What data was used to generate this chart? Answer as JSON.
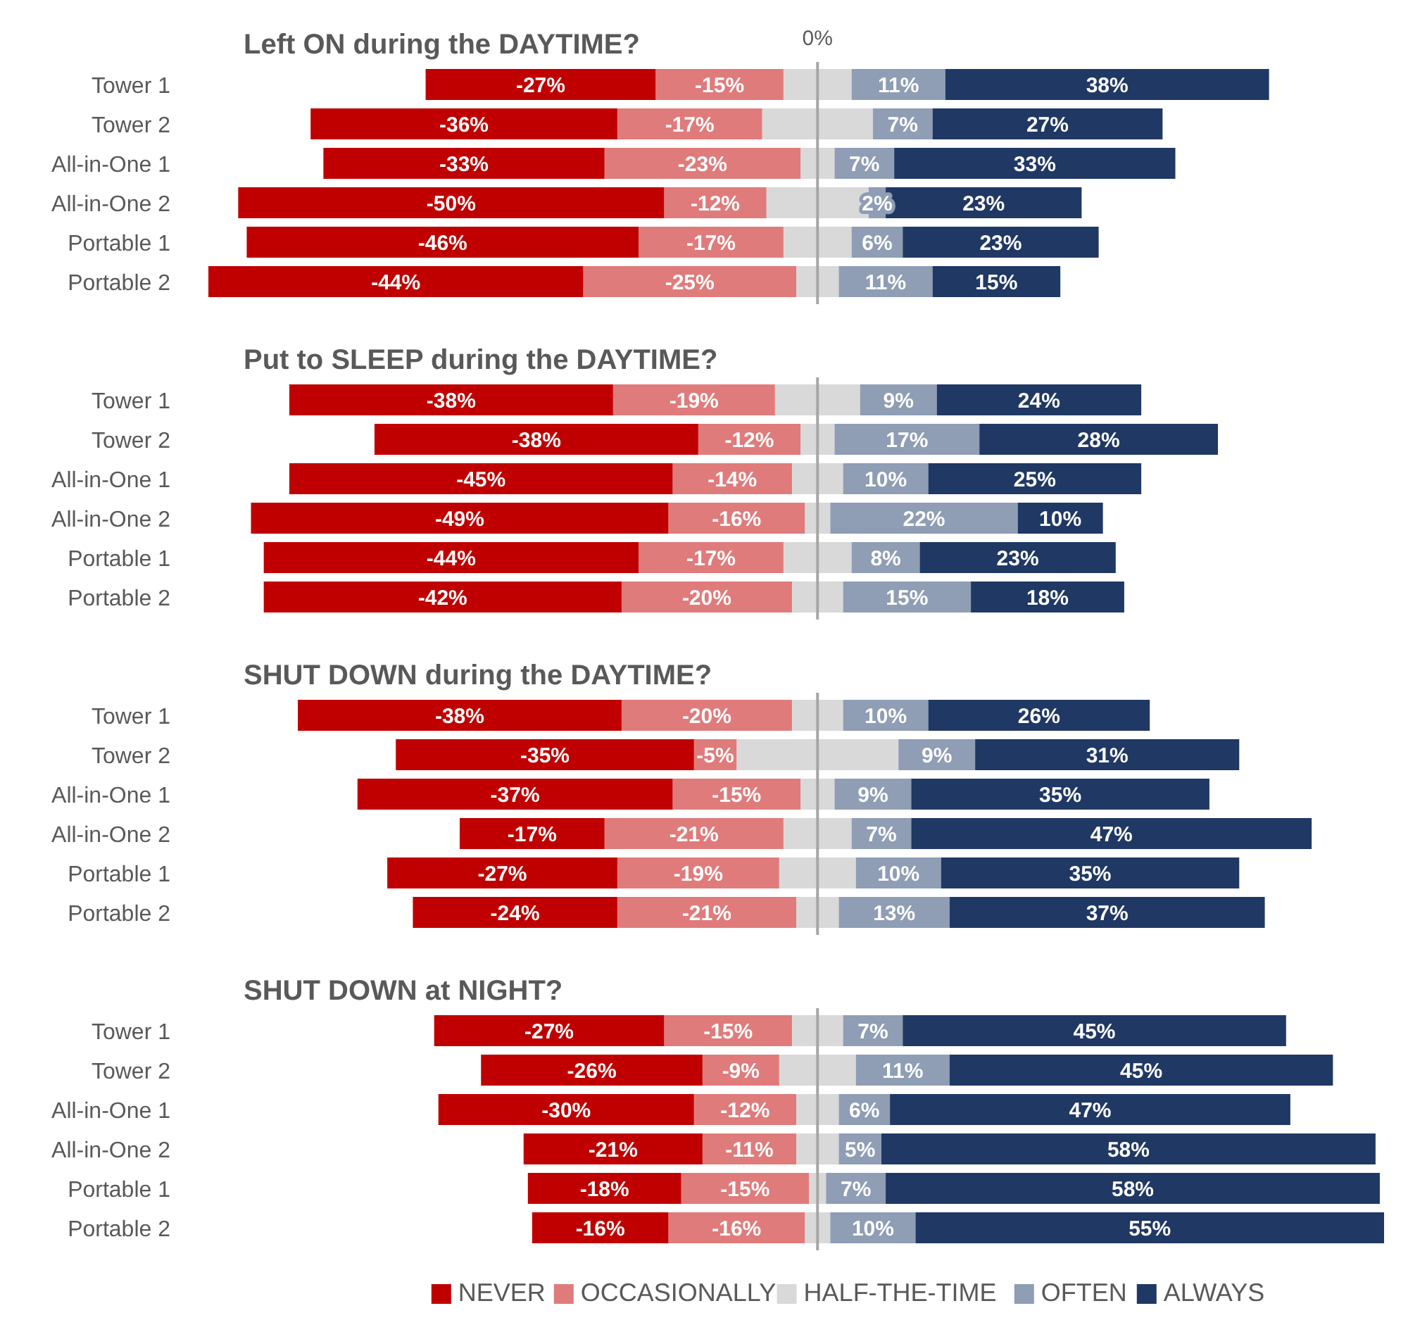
{
  "chart_data": [
    {
      "type": "bar",
      "orientation": "horizontal",
      "stacked": true,
      "title": "Left ON during the DAYTIME?",
      "categories": [
        "Tower 1",
        "Tower 2",
        "All-in-One 1",
        "All-in-One 2",
        "Portable 1",
        "Portable 2"
      ],
      "annotations": [
        "0%"
      ],
      "ref_lines": [
        {
          "axis": "x",
          "value": 0,
          "color": "#a6a6a6"
        }
      ],
      "series": [
        {
          "color": "#d9d9d9",
          "values": [
            -4,
            -6.5,
            -2,
            -6,
            -4,
            -2.5
          ]
        },
        {
          "color": "#e07b7b",
          "values": [
            -15,
            -17,
            -23,
            -12,
            -17,
            -25
          ],
          "value_labels": [
            "-15%",
            "-17%",
            "-23%",
            "-12%",
            "-17%",
            "-25%"
          ]
        },
        {
          "color": "#c00000",
          "values": [
            -27,
            -36,
            -33,
            -50,
            -46,
            -44
          ],
          "value_labels": [
            "-27%",
            "-36%",
            "-33%",
            "-50%",
            "-46%",
            "-44%"
          ]
        },
        {
          "color": "#d9d9d9",
          "values": [
            4,
            6.5,
            2,
            6,
            4,
            2.5
          ]
        },
        {
          "color": "#8f9db5",
          "values": [
            11,
            7,
            7,
            2,
            6,
            11
          ],
          "value_labels": [
            "11%",
            "7%",
            "7%",
            "2%",
            "6%",
            "11%"
          ]
        },
        {
          "color": "#203864",
          "values": [
            38,
            27,
            33,
            23,
            23,
            15
          ],
          "value_labels": [
            "38%",
            "27%",
            "33%",
            "23%",
            "23%",
            "15%"
          ]
        }
      ]
    },
    {
      "type": "bar",
      "orientation": "horizontal",
      "stacked": true,
      "title": "Put to SLEEP during the DAYTIME?",
      "categories": [
        "Tower 1",
        "Tower 2",
        "All-in-One 1",
        "All-in-One 2",
        "Portable 1",
        "Portable 2"
      ],
      "ref_lines": [
        {
          "axis": "x",
          "value": 0,
          "color": "#a6a6a6"
        }
      ],
      "series": [
        {
          "color": "#d9d9d9",
          "values": [
            -5,
            -2,
            -3,
            -1.5,
            -4,
            -3
          ]
        },
        {
          "color": "#e07b7b",
          "values": [
            -19,
            -12,
            -14,
            -16,
            -17,
            -20
          ],
          "value_labels": [
            "-19%",
            "-12%",
            "-14%",
            "-16%",
            "-17%",
            "-20%"
          ]
        },
        {
          "color": "#c00000",
          "values": [
            -38,
            -38,
            -45,
            -49,
            -44,
            -42
          ],
          "value_labels": [
            "-38%",
            "-38%",
            "-45%",
            "-49%",
            "-44%",
            "-42%"
          ]
        },
        {
          "color": "#d9d9d9",
          "values": [
            5,
            2,
            3,
            1.5,
            4,
            3
          ]
        },
        {
          "color": "#8f9db5",
          "values": [
            9,
            17,
            10,
            22,
            8,
            15
          ],
          "value_labels": [
            "9%",
            "17%",
            "10%",
            "22%",
            "8%",
            "15%"
          ]
        },
        {
          "color": "#203864",
          "values": [
            24,
            28,
            25,
            10,
            23,
            18
          ],
          "value_labels": [
            "24%",
            "28%",
            "25%",
            "10%",
            "23%",
            "18%"
          ]
        }
      ]
    },
    {
      "type": "bar",
      "orientation": "horizontal",
      "stacked": true,
      "title": "SHUT DOWN during the DAYTIME?",
      "categories": [
        "Tower 1",
        "Tower 2",
        "All-in-One 1",
        "All-in-One 2",
        "Portable 1",
        "Portable 2"
      ],
      "ref_lines": [
        {
          "axis": "x",
          "value": 0,
          "color": "#a6a6a6"
        }
      ],
      "series": [
        {
          "color": "#d9d9d9",
          "values": [
            -3,
            -9.5,
            -2,
            -4,
            -4.5,
            -2.5
          ]
        },
        {
          "color": "#e07b7b",
          "values": [
            -20,
            -5,
            -15,
            -21,
            -19,
            -21
          ],
          "value_labels": [
            "-20%",
            "-5%",
            "-15%",
            "-21%",
            "-19%",
            "-21%"
          ]
        },
        {
          "color": "#c00000",
          "values": [
            -38,
            -35,
            -37,
            -17,
            -27,
            -24
          ],
          "value_labels": [
            "-38%",
            "-35%",
            "-37%",
            "-17%",
            "-27%",
            "-24%"
          ]
        },
        {
          "color": "#d9d9d9",
          "values": [
            3,
            9.5,
            2,
            4,
            4.5,
            2.5
          ]
        },
        {
          "color": "#8f9db5",
          "values": [
            10,
            9,
            9,
            7,
            10,
            13
          ],
          "value_labels": [
            "10%",
            "9%",
            "9%",
            "7%",
            "10%",
            "13%"
          ]
        },
        {
          "color": "#203864",
          "values": [
            26,
            31,
            35,
            47,
            35,
            37
          ],
          "value_labels": [
            "26%",
            "31%",
            "35%",
            "47%",
            "35%",
            "37%"
          ]
        }
      ]
    },
    {
      "type": "bar",
      "orientation": "horizontal",
      "stacked": true,
      "title": "SHUT DOWN at NIGHT?",
      "categories": [
        "Tower 1",
        "Tower 2",
        "All-in-One 1",
        "All-in-One 2",
        "Portable 1",
        "Portable 2"
      ],
      "legend": "bottom",
      "ref_lines": [
        {
          "axis": "x",
          "value": 0,
          "color": "#a6a6a6"
        }
      ],
      "series": [
        {
          "name": "HALF-THE-TIME",
          "color": "#d9d9d9",
          "values": [
            -3,
            -4.5,
            -2.5,
            -2.5,
            -1,
            -1.5
          ]
        },
        {
          "name": "OCCASIONALLY",
          "color": "#e07b7b",
          "values": [
            -15,
            -9,
            -12,
            -11,
            -15,
            -16
          ],
          "value_labels": [
            "-15%",
            "-9%",
            "-12%",
            "-11%",
            "-15%",
            "-16%"
          ]
        },
        {
          "name": "NEVER",
          "color": "#c00000",
          "values": [
            -27,
            -26,
            -30,
            -21,
            -18,
            -16
          ],
          "value_labels": [
            "-27%",
            "-26%",
            "-30%",
            "-21%",
            "-18%",
            "-16%"
          ]
        },
        {
          "color": "#d9d9d9",
          "values": [
            3,
            4.5,
            2.5,
            2.5,
            1,
            1.5
          ]
        },
        {
          "name": "OFTEN",
          "color": "#8f9db5",
          "values": [
            7,
            11,
            6,
            5,
            7,
            10
          ],
          "value_labels": [
            "7%",
            "11%",
            "6%",
            "5%",
            "7%",
            "10%"
          ]
        },
        {
          "name": "ALWAYS",
          "color": "#203864",
          "values": [
            45,
            45,
            47,
            58,
            58,
            55
          ],
          "value_labels": [
            "45%",
            "45%",
            "47%",
            "58%",
            "58%",
            "55%"
          ]
        }
      ]
    }
  ]
}
